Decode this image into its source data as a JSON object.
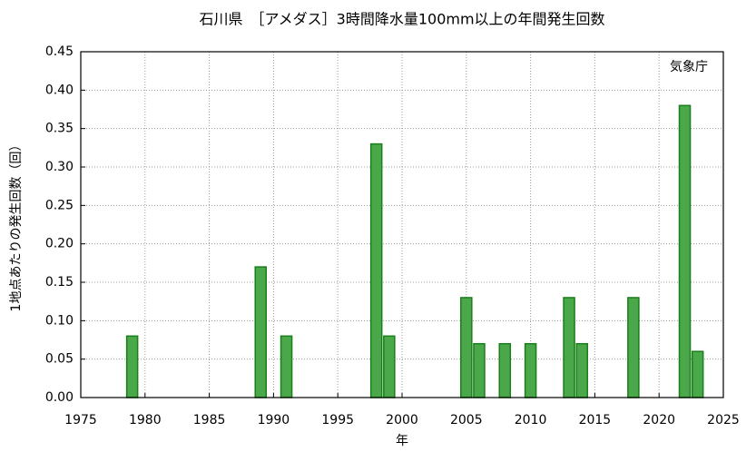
{
  "chart_data": {
    "type": "bar",
    "title": "石川県　［アメダス］3時間降水量100mm以上の年間発生回数",
    "annotation": "気象庁",
    "x_label": "年",
    "y_label": "1地点あたりの発生回数（回）",
    "x": [
      1979,
      1989,
      1991,
      1998,
      1999,
      2005,
      2006,
      2008,
      2010,
      2013,
      2014,
      2018,
      2022,
      2023
    ],
    "values": [
      0.08,
      0.17,
      0.08,
      0.33,
      0.08,
      0.13,
      0.07,
      0.07,
      0.07,
      0.13,
      0.07,
      0.13,
      0.38,
      0.06
    ],
    "color": "#4aa84a",
    "edge_color": "#1a7f1a",
    "xlim": [
      1975,
      2025
    ],
    "xticks": [
      1975,
      1980,
      1985,
      1990,
      1995,
      2000,
      2005,
      2010,
      2015,
      2020,
      2025
    ],
    "ylim": [
      0,
      0.45
    ],
    "yticks": [
      {
        "value": 0,
        "label": "0.00"
      },
      {
        "value": 0.05,
        "label": "0.05"
      },
      {
        "value": 0.1,
        "label": "0.10"
      },
      {
        "value": 0.15,
        "label": "0.15"
      },
      {
        "value": 0.2,
        "label": "0.20"
      },
      {
        "value": 0.25,
        "label": "0.25"
      },
      {
        "value": 0.3,
        "label": "0.30"
      },
      {
        "value": 0.35,
        "label": "0.35"
      },
      {
        "value": 0.4,
        "label": "0.40"
      },
      {
        "value": 0.45,
        "label": "0.45"
      }
    ],
    "grid": true
  }
}
